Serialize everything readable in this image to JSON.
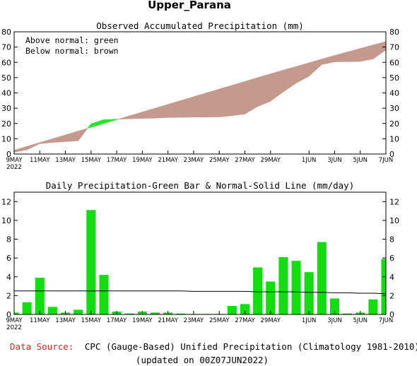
{
  "region_title": "Upper_Parana",
  "colors": {
    "above_fill": "#2ee32e",
    "below_fill": "#c49a8e",
    "bar_fill": "#11dd11",
    "normal_line": "#000000",
    "source_label": "#dd2222"
  },
  "chart_data": [
    {
      "type": "area",
      "title": "Observed Accumulated Precipitation (mm)",
      "legend": [
        "Above normal: green",
        "Below normal: brown"
      ],
      "ylim": [
        0,
        80
      ],
      "yticks": [
        0,
        10,
        20,
        30,
        40,
        50,
        60,
        70,
        80
      ],
      "x_tick_labels": [
        {
          "day": 0,
          "label": "9MAY"
        },
        {
          "day": 2,
          "label": "11MAY"
        },
        {
          "day": 4,
          "label": "13MAY"
        },
        {
          "day": 6,
          "label": "15MAY"
        },
        {
          "day": 8,
          "label": "17MAY"
        },
        {
          "day": 10,
          "label": "19MAY"
        },
        {
          "day": 12,
          "label": "21MAY"
        },
        {
          "day": 14,
          "label": "23MAY"
        },
        {
          "day": 16,
          "label": "25MAY"
        },
        {
          "day": 18,
          "label": "27MAY"
        },
        {
          "day": 20,
          "label": "29MAY"
        },
        {
          "day": 23,
          "label": "1JUN"
        },
        {
          "day": 25,
          "label": "3JUN"
        },
        {
          "day": 27,
          "label": "5JUN"
        },
        {
          "day": 29,
          "label": "7JUN"
        }
      ],
      "year_label": "2022",
      "series": [
        {
          "name": "Observed",
          "values": [
            1.2,
            2.8,
            6.8,
            7.6,
            8.1,
            8.7,
            19.8,
            22.5,
            22.8,
            23.0,
            23.3,
            23.5,
            23.9,
            24.0,
            24.1,
            24.2,
            24.3,
            25.1,
            26.2,
            31.1,
            34.6,
            40.7,
            46.4,
            50.9,
            58.6,
            60.3,
            60.4,
            60.6,
            62.2,
            68.1
          ]
        },
        {
          "name": "Normal",
          "values": [
            2.5,
            5.0,
            7.5,
            10.0,
            12.5,
            15.0,
            17.5,
            20.0,
            22.5,
            25.0,
            27.5,
            30.0,
            32.5,
            35.0,
            37.5,
            40.0,
            42.5,
            45.0,
            47.5,
            50.0,
            52.5,
            54.9,
            57.3,
            59.7,
            62.1,
            64.5,
            66.8,
            69.1,
            71.4,
            73.6
          ]
        }
      ]
    },
    {
      "type": "bar",
      "title": "Daily Precipitation-Green Bar & Normal-Solid Line (mm/day)",
      "ylim": [
        0,
        13
      ],
      "yticks": [
        0,
        2,
        4,
        6,
        8,
        10,
        12
      ],
      "x_tick_labels": [
        {
          "day": 0,
          "label": "9MAY"
        },
        {
          "day": 2,
          "label": "11MAY"
        },
        {
          "day": 4,
          "label": "13MAY"
        },
        {
          "day": 6,
          "label": "15MAY"
        },
        {
          "day": 8,
          "label": "17MAY"
        },
        {
          "day": 10,
          "label": "19MAY"
        },
        {
          "day": 12,
          "label": "21MAY"
        },
        {
          "day": 14,
          "label": "23MAY"
        },
        {
          "day": 16,
          "label": "25MAY"
        },
        {
          "day": 18,
          "label": "27MAY"
        },
        {
          "day": 20,
          "label": "29MAY"
        },
        {
          "day": 23,
          "label": "1JUN"
        },
        {
          "day": 25,
          "label": "3JUN"
        },
        {
          "day": 27,
          "label": "5JUN"
        },
        {
          "day": 29,
          "label": "7JUN"
        }
      ],
      "year_label": "2022",
      "series": [
        {
          "name": "Daily Precipitation",
          "values": [
            0.2,
            1.3,
            3.9,
            0.8,
            0.2,
            0.5,
            11.1,
            4.2,
            0.3,
            0.1,
            0.3,
            0.2,
            0.2,
            0.1,
            0.05,
            0.05,
            0.05,
            0.9,
            1.1,
            5.0,
            3.5,
            6.1,
            5.7,
            4.5,
            7.7,
            1.7,
            0.1,
            0.2,
            1.6,
            5.9
          ]
        },
        {
          "name": "Normal",
          "values": [
            2.5,
            2.5,
            2.5,
            2.5,
            2.5,
            2.5,
            2.5,
            2.5,
            2.5,
            2.5,
            2.5,
            2.5,
            2.5,
            2.5,
            2.45,
            2.45,
            2.45,
            2.45,
            2.45,
            2.4,
            2.4,
            2.4,
            2.4,
            2.35,
            2.35,
            2.3,
            2.3,
            2.25,
            2.25,
            2.2
          ]
        }
      ]
    }
  ],
  "footer": {
    "source_label": "Data Source:",
    "source_text": "CPC (Gauge-Based) Unified Precipitation (Climatology 1981-2010)",
    "updated_text": "(updated on 00Z07JUN2022)"
  }
}
